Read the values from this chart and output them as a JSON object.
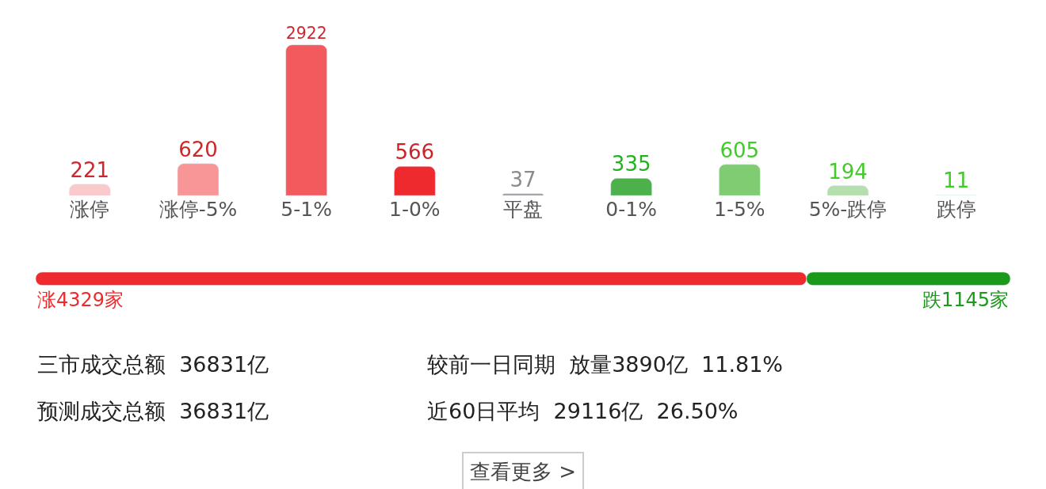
{
  "chart_data": [
    {
      "type": "bar",
      "categories": [
        "涨停",
        "涨停-5%",
        "5-1%",
        "1-0%",
        "平盘",
        "0-1%",
        "1-5%",
        "5%-跌停",
        "跌停"
      ],
      "values": [
        221,
        620,
        2922,
        566,
        37,
        335,
        605,
        194,
        11
      ],
      "colors": [
        "#f9c9cb",
        "#f79597",
        "#f25a5e",
        "#ee2a2e",
        "#9a9a9a",
        "#4cb14a",
        "#7fcc73",
        "#b5e0ad",
        "#d9f0d5"
      ],
      "data_labels": true
    },
    {
      "type": "bar",
      "orientation": "horizontal",
      "stacked": true,
      "categories": [
        null
      ],
      "series": [
        {
          "color": "#ee2a2e",
          "values": [
            4329
          ],
          "value_labels": [
            "涨4329家"
          ]
        },
        {
          "color": "#1a9a1a",
          "values": [
            1145
          ],
          "value_labels": [
            "跌1145家"
          ]
        }
      ],
      "annotations": [
        "三市成交总额  36831亿",
        "较前一日同期  放量3890亿  11.81%",
        "预测成交总额  36831亿",
        "近60日平均  29116亿  26.50%",
        "查看更多 >"
      ]
    }
  ]
}
